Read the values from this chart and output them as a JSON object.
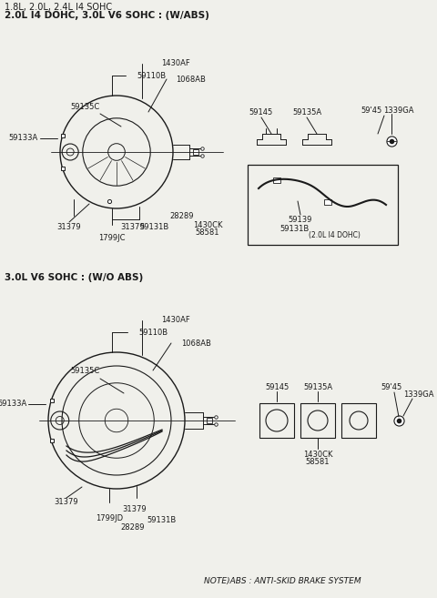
{
  "title_line1": "1.8L, 2.0L, 2.4L I4 SOHC",
  "title_line2": "2.0L I4 DOHC, 3.0L V6 SOHC : (W/ABS)",
  "section2_title": "3.0L V6 SOHC : (W/O ABS)",
  "note": "NOTE)ABS : ANTI-SKID BRAKE SYSTEM",
  "bg_color": "#f0f0eb",
  "line_color": "#1a1a1a",
  "text_color": "#1a1a1a",
  "fs": 6.0,
  "fs_title": 7.5,
  "fs_bold": 8.0
}
